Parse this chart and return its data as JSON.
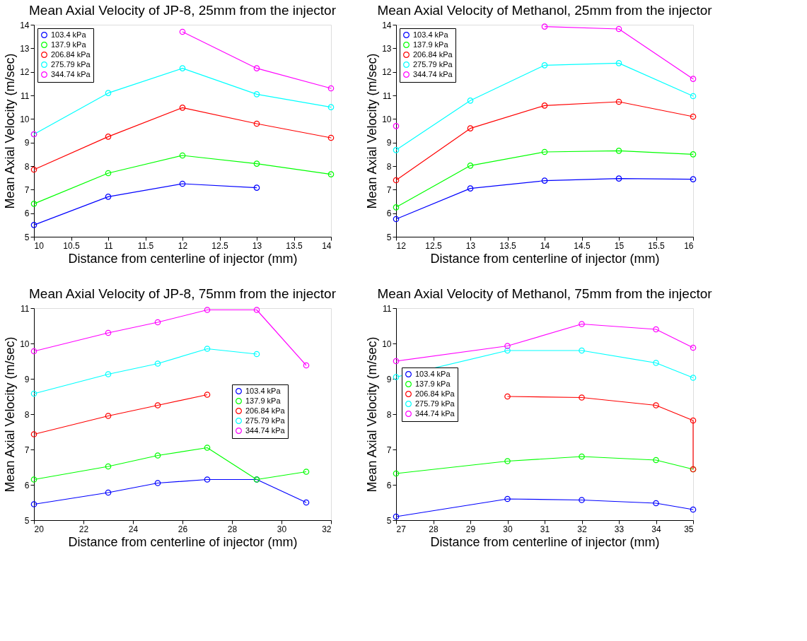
{
  "chart_data": [
    {
      "type": "line",
      "title": "Mean Axial Velocity of JP-8, 25mm from the injector",
      "xlabel": "Distance from centerline of injector (mm)",
      "ylabel": "Mean Axial Velocity (m/sec)",
      "x": [
        10,
        11,
        12,
        13,
        14
      ],
      "xlim": [
        10,
        14
      ],
      "xticks": [
        10,
        10.5,
        11,
        11.5,
        12,
        12.5,
        13,
        13.5,
        14
      ],
      "ylim": [
        5,
        14
      ],
      "yticks": [
        5,
        6,
        7,
        8,
        9,
        10,
        11,
        12,
        13,
        14
      ],
      "grid": false,
      "legend": "top left",
      "marker": "circle",
      "line_style": "solid",
      "series": [
        {
          "name": "103.4 kPa",
          "color": "#0000ff",
          "values": [
            5.5,
            6.7,
            7.25,
            7.08,
            null
          ]
        },
        {
          "name": "137.9 kPa",
          "color": "#00ff00",
          "values": [
            6.4,
            7.7,
            8.45,
            8.1,
            7.65
          ]
        },
        {
          "name": "206.84 kPa",
          "color": "#ff0000",
          "values": [
            7.85,
            9.25,
            10.48,
            9.8,
            9.2
          ]
        },
        {
          "name": "275.79 kPa",
          "color": "#00ffff",
          "values": [
            9.35,
            11.1,
            12.15,
            11.05,
            10.5
          ]
        },
        {
          "name": "344.74 kPa",
          "color": "#ff00ff",
          "values": [
            9.35,
            null,
            13.7,
            12.15,
            11.3
          ]
        }
      ]
    },
    {
      "type": "line",
      "title": "Mean Axial Velocity of Methanol, 25mm from the injector",
      "xlabel": "Distance from centerline of injector (mm)",
      "ylabel": "Mean Axial Velocity (m/sec)",
      "x": [
        12,
        13,
        14,
        15,
        16
      ],
      "xlim": [
        12,
        16
      ],
      "xticks": [
        12,
        12.5,
        13,
        13.5,
        14,
        14.5,
        15,
        15.5,
        16
      ],
      "ylim": [
        5,
        14
      ],
      "yticks": [
        5,
        6,
        7,
        8,
        9,
        10,
        11,
        12,
        13,
        14
      ],
      "grid": false,
      "legend": "top left",
      "marker": "circle",
      "line_style": "solid",
      "series": [
        {
          "name": "103.4 kPa",
          "color": "#0000ff",
          "values": [
            5.75,
            7.05,
            7.38,
            7.47,
            7.44
          ]
        },
        {
          "name": "137.9 kPa",
          "color": "#00ff00",
          "values": [
            6.25,
            8.02,
            8.6,
            8.65,
            8.5
          ]
        },
        {
          "name": "206.84 kPa",
          "color": "#ff0000",
          "values": [
            7.4,
            9.6,
            10.57,
            10.73,
            10.1
          ]
        },
        {
          "name": "275.79 kPa",
          "color": "#00ffff",
          "values": [
            8.68,
            10.78,
            12.28,
            12.37,
            10.97
          ]
        },
        {
          "name": "344.74 kPa",
          "color": "#ff00ff",
          "values": [
            9.7,
            null,
            13.92,
            13.82,
            11.7
          ]
        }
      ]
    },
    {
      "type": "line",
      "title": "Mean Axial Velocity of JP-8, 75mm from the injector",
      "xlabel": "Distance from centerline of injector (mm)",
      "ylabel": "Mean Axial Velocity (m/sec)",
      "x": [
        20,
        23,
        25,
        27,
        29,
        31
      ],
      "xlim": [
        20,
        32
      ],
      "xticks": [
        20,
        22,
        24,
        26,
        28,
        30,
        32
      ],
      "ylim": [
        5,
        11
      ],
      "yticks": [
        5,
        6,
        7,
        8,
        9,
        10,
        11
      ],
      "grid": false,
      "legend": "right",
      "marker": "circle",
      "line_style": "solid",
      "series": [
        {
          "name": "103.4 kPa",
          "color": "#0000ff",
          "values": [
            5.45,
            5.78,
            6.05,
            6.15,
            6.15,
            5.5
          ]
        },
        {
          "name": "137.9 kPa",
          "color": "#00ff00",
          "values": [
            6.15,
            6.52,
            6.83,
            7.05,
            6.15,
            6.37
          ]
        },
        {
          "name": "206.84 kPa",
          "color": "#ff0000",
          "values": [
            7.43,
            7.95,
            8.25,
            8.55,
            null,
            null
          ]
        },
        {
          "name": "275.79 kPa",
          "color": "#00ffff",
          "values": [
            8.58,
            9.13,
            9.43,
            9.85,
            9.7,
            null
          ]
        },
        {
          "name": "344.74 kPa",
          "color": "#ff00ff",
          "values": [
            9.78,
            10.3,
            10.6,
            10.95,
            10.95,
            9.38
          ]
        }
      ]
    },
    {
      "type": "line",
      "title": "Mean Axial Velocity of Methanol, 75mm from the injector",
      "xlabel": "Distance from centerline of injector (mm)",
      "ylabel": "Mean Axial Velocity (m/sec)",
      "x": [
        27,
        30,
        32,
        34,
        35
      ],
      "xlim": [
        27,
        35
      ],
      "xticks": [
        27,
        28,
        29,
        30,
        31,
        32,
        33,
        34,
        35
      ],
      "ylim": [
        5,
        11
      ],
      "yticks": [
        5,
        6,
        7,
        8,
        9,
        10,
        11
      ],
      "grid": false,
      "legend": "left",
      "marker": "circle",
      "line_style": "solid",
      "series": [
        {
          "name": "103.4 kPa",
          "color": "#0000ff",
          "values": [
            5.1,
            5.6,
            5.57,
            5.48,
            5.3
          ]
        },
        {
          "name": "137.9 kPa",
          "color": "#00ff00",
          "values": [
            6.32,
            6.67,
            6.8,
            6.7,
            6.44
          ]
        },
        {
          "name": "206.84 kPa",
          "color": "#ff0000",
          "x": [
            30,
            32,
            34,
            35,
            35
          ],
          "values": [
            8.5,
            8.47,
            8.25,
            7.82,
            6.44
          ]
        },
        {
          "name": "275.79 kPa",
          "color": "#00ffff",
          "values": [
            9.05,
            9.8,
            9.8,
            9.45,
            9.03
          ]
        },
        {
          "name": "344.74 kPa",
          "color": "#ff00ff",
          "values": [
            9.5,
            9.93,
            10.55,
            10.4,
            9.88
          ]
        }
      ]
    }
  ]
}
